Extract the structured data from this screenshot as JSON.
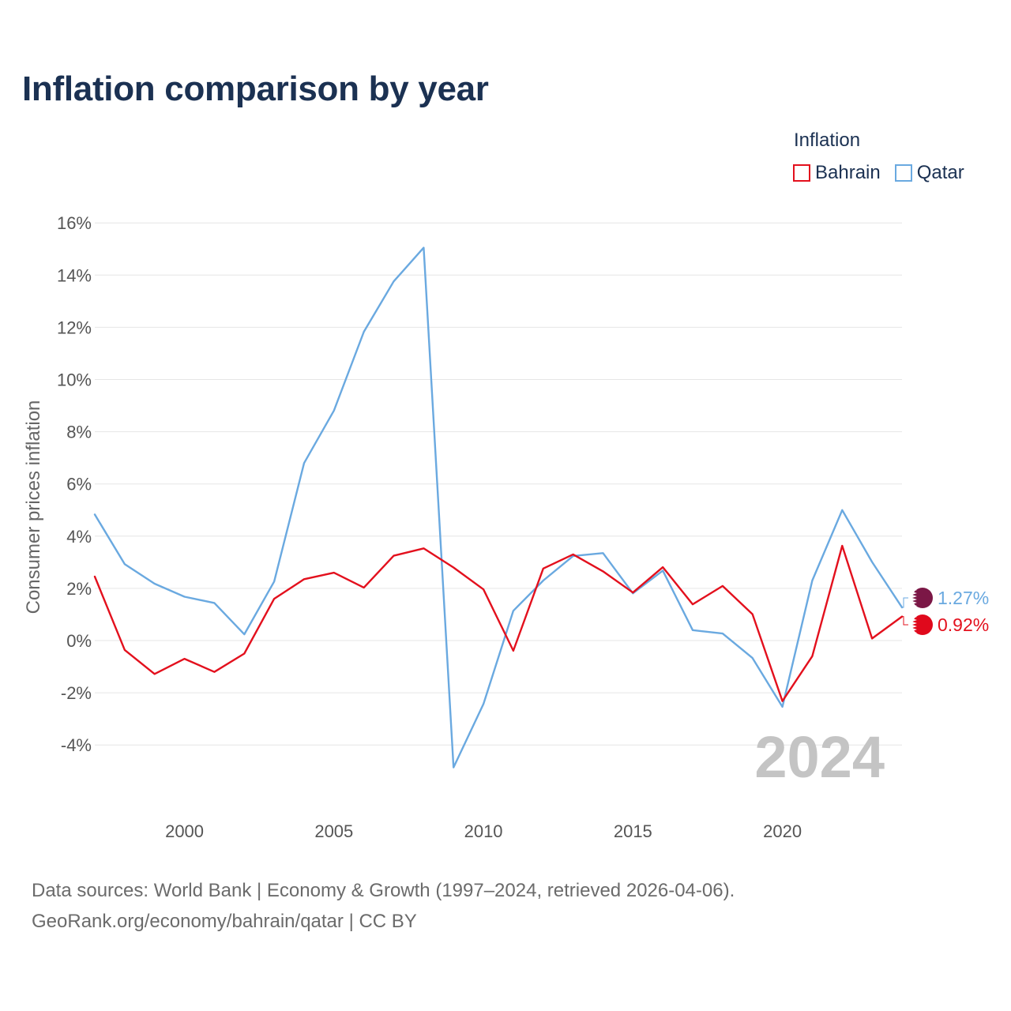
{
  "title": "Inflation comparison by year",
  "legend": {
    "title": "Inflation",
    "items": [
      {
        "name": "Bahrain",
        "color": "#e3101d"
      },
      {
        "name": "Qatar",
        "color": "#6aa9e0"
      }
    ]
  },
  "current_year": "2024",
  "source": {
    "line1": "Data sources: World Bank | Economy & Growth (1997–2024, retrieved 2026-04-06).",
    "line2": "GeoRank.org/economy/bahrain/qatar | CC BY"
  },
  "chart_data": {
    "type": "line",
    "title": "Inflation comparison by year",
    "xlabel": "",
    "ylabel": "Consumer prices inflation",
    "xlim": [
      1997,
      2024
    ],
    "ylim": [
      -6,
      16
    ],
    "xticks": [
      2000,
      2005,
      2010,
      2015,
      2020
    ],
    "yticks": [
      16,
      14,
      12,
      10,
      8,
      6,
      4,
      2,
      0,
      -2,
      -4
    ],
    "ytick_labels": [
      "16%",
      "14%",
      "12%",
      "10%",
      "8%",
      "6%",
      "4%",
      "2%",
      "0%",
      "-2%",
      "-4%"
    ],
    "grid": true,
    "legend_position": "top-right",
    "x": [
      1997,
      1998,
      1999,
      2000,
      2001,
      2002,
      2003,
      2004,
      2005,
      2006,
      2007,
      2008,
      2009,
      2010,
      2011,
      2012,
      2013,
      2014,
      2015,
      2016,
      2017,
      2018,
      2019,
      2020,
      2021,
      2022,
      2023,
      2024
    ],
    "series": [
      {
        "name": "Bahrain",
        "color": "#e3101d",
        "end_label": "0.92%",
        "values": [
          2.45,
          -0.36,
          -1.28,
          -0.7,
          -1.2,
          -0.5,
          1.6,
          2.35,
          2.6,
          2.03,
          3.25,
          3.53,
          2.8,
          1.96,
          -0.39,
          2.76,
          3.3,
          2.65,
          1.84,
          2.81,
          1.39,
          2.09,
          1.01,
          -2.32,
          -0.6,
          3.63,
          0.08,
          0.92
        ]
      },
      {
        "name": "Qatar",
        "color": "#6aa9e0",
        "end_label": "1.27%",
        "values": [
          4.83,
          2.93,
          2.18,
          1.68,
          1.44,
          0.24,
          2.26,
          6.8,
          8.81,
          11.83,
          13.76,
          15.05,
          -4.86,
          -2.43,
          1.14,
          2.3,
          3.24,
          3.35,
          1.81,
          2.68,
          0.4,
          0.27,
          -0.67,
          -2.54,
          2.3,
          5.0,
          3.01,
          1.27
        ]
      }
    ]
  }
}
